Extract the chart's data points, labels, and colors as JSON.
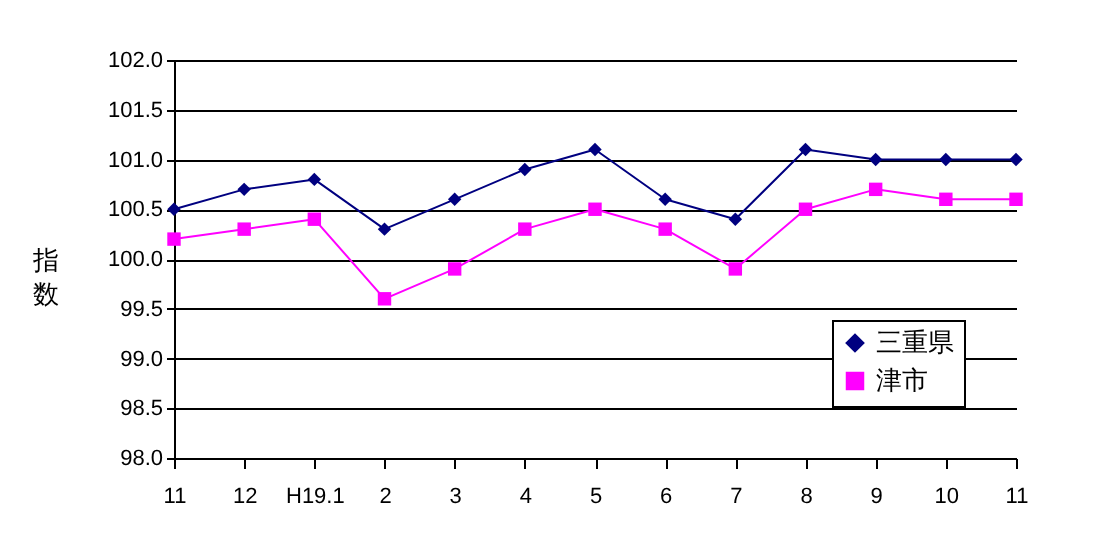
{
  "chart_data": {
    "type": "line",
    "ylabel": "指数",
    "categories": [
      "11",
      "12",
      "H19.1",
      "2",
      "3",
      "4",
      "5",
      "6",
      "7",
      "8",
      "9",
      "10",
      "11"
    ],
    "series": [
      {
        "name": "三重県",
        "color": "#000080",
        "marker": "diamond",
        "values": [
          100.5,
          100.7,
          100.8,
          100.3,
          100.6,
          100.9,
          101.1,
          100.6,
          100.4,
          101.1,
          101.0,
          101.0,
          101.0
        ]
      },
      {
        "name": "津市",
        "color": "#ff00ff",
        "marker": "square",
        "values": [
          100.2,
          100.3,
          100.4,
          99.6,
          99.9,
          100.3,
          100.5,
          100.3,
          99.9,
          100.5,
          100.7,
          100.6,
          100.6
        ]
      }
    ],
    "ylim": [
      98,
      102
    ],
    "yticks": [
      {
        "value": 98,
        "label": "98.0"
      },
      {
        "value": 98.5,
        "label": "98.5"
      },
      {
        "value": 99,
        "label": "99.0"
      },
      {
        "value": 99.5,
        "label": "99.5"
      },
      {
        "value": 100,
        "label": "100.0"
      },
      {
        "value": 100.5,
        "label": "100.5"
      },
      {
        "value": 101,
        "label": "101.0"
      },
      {
        "value": 101.5,
        "label": "101.5"
      },
      {
        "value": 102,
        "label": "102.0"
      }
    ],
    "grid": "y",
    "legend": "bottom right",
    "line_style": "solid"
  }
}
